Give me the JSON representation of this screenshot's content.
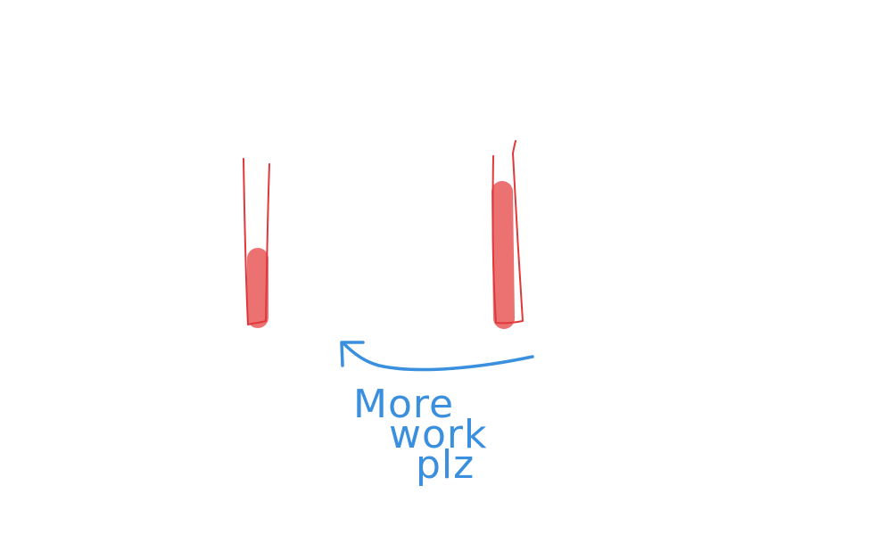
{
  "colors": {
    "tube": "#e0383b",
    "tube_fill": "#ec7272",
    "arrow": "#3a8fde",
    "note": "#3a8fde"
  },
  "tubes": [
    {
      "name": "left-tube",
      "level": 0.45
    },
    {
      "name": "right-tube",
      "level": 0.9
    }
  ],
  "annotation": {
    "lines": [
      "More",
      "work",
      "plz"
    ]
  }
}
